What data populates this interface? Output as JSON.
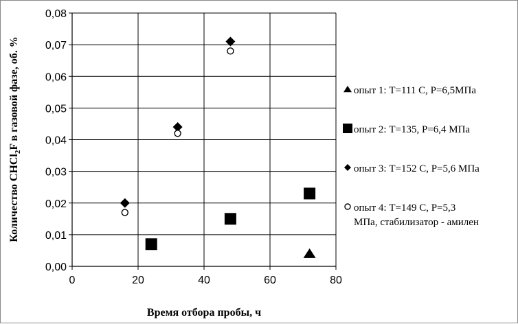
{
  "chart_data": {
    "type": "scatter",
    "title": "",
    "xlabel": "Время отбора пробы, ч",
    "ylabel_parts": [
      "Количество CHCl",
      "2",
      "F в газовой фазе, об. %"
    ],
    "xlim": [
      0,
      80
    ],
    "ylim": [
      0,
      0.08
    ],
    "x_ticks": [
      0,
      20,
      40,
      60,
      80
    ],
    "x_tick_labels": [
      "0",
      "20",
      "40",
      "60",
      "80"
    ],
    "y_ticks": [
      0,
      0.01,
      0.02,
      0.03,
      0.04,
      0.05,
      0.06,
      0.07,
      0.08
    ],
    "y_tick_labels": [
      "0,00",
      "0,01",
      "0,02",
      "0,03",
      "0,04",
      "0,05",
      "0,06",
      "0,07",
      "0,08"
    ],
    "grid": true,
    "legend_placement": "right",
    "series": [
      {
        "name": "опыт 1: T=111 С, P=6,5МПа",
        "name_lines": [
          "опыт 1: T=111 С, P=6,5МПа"
        ],
        "marker": "triangle",
        "color": "#000000",
        "points": [
          {
            "x": 72,
            "y": 0.004
          }
        ]
      },
      {
        "name": "опыт 2: T=135, P=6,4 МПа",
        "name_lines": [
          "опыт 2: T=135, P=6,4 МПа"
        ],
        "marker": "square",
        "color": "#000000",
        "points": [
          {
            "x": 24,
            "y": 0.007
          },
          {
            "x": 48,
            "y": 0.015
          },
          {
            "x": 72,
            "y": 0.023
          }
        ]
      },
      {
        "name": "опыт 3: T=152 С, P=5,6 МПа",
        "name_lines": [
          "опыт 3: T=152 С, P=5,6 МПа"
        ],
        "marker": "diamond",
        "color": "#000000",
        "points": [
          {
            "x": 16,
            "y": 0.02
          },
          {
            "x": 32,
            "y": 0.044
          },
          {
            "x": 48,
            "y": 0.071
          }
        ]
      },
      {
        "name": "опыт 4: T=149 С, P=5,3 МПа, стабилизатор - амилен",
        "name_lines": [
          "опыт 4: T=149 С, P=5,3",
          "МПа, стабилизатор - амилен"
        ],
        "marker": "circle",
        "color": "#000000",
        "points": [
          {
            "x": 16,
            "y": 0.017
          },
          {
            "x": 32,
            "y": 0.042
          },
          {
            "x": 48,
            "y": 0.068
          }
        ]
      }
    ]
  }
}
